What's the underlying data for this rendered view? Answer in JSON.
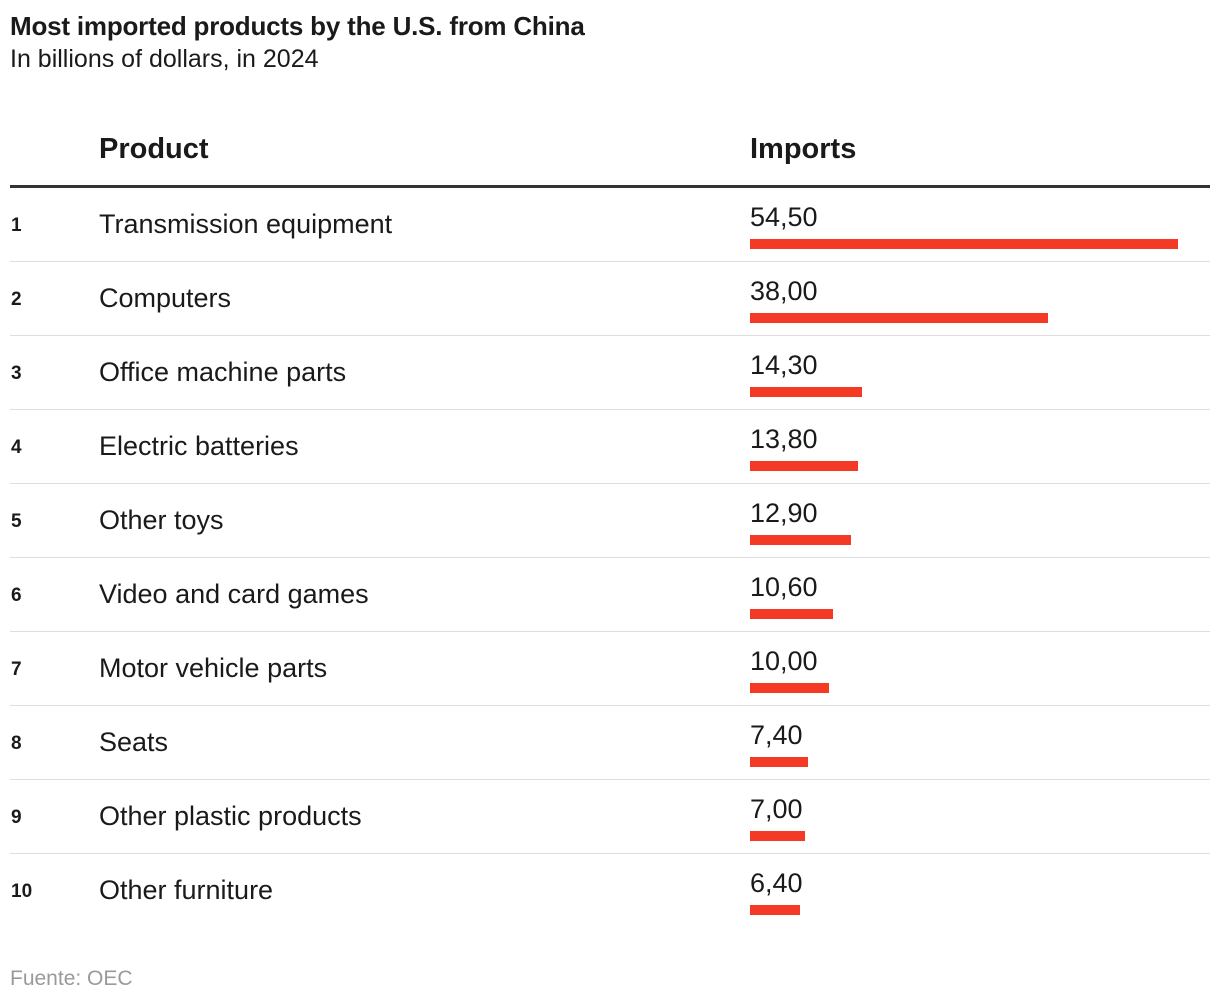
{
  "chart_data": {
    "type": "table",
    "title": "Most imported products by the U.S. from China",
    "subtitle": "In billions of dollars, in 2024",
    "columns": {
      "product": "Product",
      "imports": "Imports"
    },
    "max_value": 54.5,
    "rows": [
      {
        "rank": "1",
        "product": "Transmission equipment",
        "value": 54.5,
        "label": "54,50"
      },
      {
        "rank": "2",
        "product": "Computers",
        "value": 38.0,
        "label": "38,00"
      },
      {
        "rank": "3",
        "product": "Office machine parts",
        "value": 14.3,
        "label": "14,30"
      },
      {
        "rank": "4",
        "product": "Electric batteries",
        "value": 13.8,
        "label": "13,80"
      },
      {
        "rank": "5",
        "product": "Other toys",
        "value": 12.9,
        "label": "12,90"
      },
      {
        "rank": "6",
        "product": "Video and card games",
        "value": 10.6,
        "label": "10,60"
      },
      {
        "rank": "7",
        "product": "Motor vehicle parts",
        "value": 10.0,
        "label": "10,00"
      },
      {
        "rank": "8",
        "product": "Seats",
        "value": 7.4,
        "label": "7,40"
      },
      {
        "rank": "9",
        "product": "Other plastic products",
        "value": 7.0,
        "label": "7,00"
      },
      {
        "rank": "10",
        "product": "Other furniture",
        "value": 6.4,
        "label": "6,40"
      }
    ],
    "source": "Fuente: OEC",
    "bar_color": "#f43a24"
  }
}
